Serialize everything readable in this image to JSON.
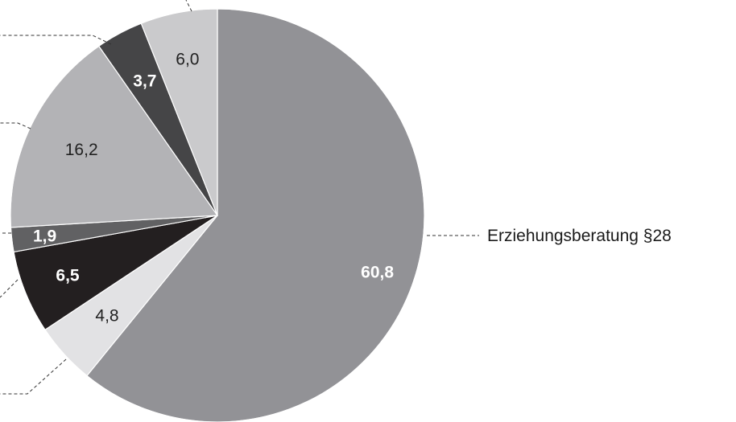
{
  "chart_data": {
    "type": "pie",
    "start_angle_deg": 0,
    "direction": "clockwise",
    "slices": [
      {
        "value": 60.8,
        "label": "60,8",
        "color": "#929296",
        "label_color": "#ffffff",
        "bold": true,
        "category": "Erziehungsberatung §28"
      },
      {
        "value": 4.8,
        "label": "4,8",
        "color": "#e2e2e4",
        "label_color": "#222222",
        "bold": false,
        "category": ""
      },
      {
        "value": 6.5,
        "label": "6,5",
        "color": "#231f20",
        "label_color": "#ffffff",
        "bold": true,
        "category": ""
      },
      {
        "value": 1.9,
        "label": "1,9",
        "color": "#616163",
        "label_color": "#ffffff",
        "bold": true,
        "category": ""
      },
      {
        "value": 16.2,
        "label": "16,2",
        "color": "#b3b3b6",
        "label_color": "#222222",
        "bold": false,
        "category": ""
      },
      {
        "value": 3.7,
        "label": "3,7",
        "color": "#454547",
        "label_color": "#ffffff",
        "bold": true,
        "category": ""
      },
      {
        "value": 6.0,
        "label": "6,0",
        "color": "#cacacc",
        "label_color": "#222222",
        "bold": false,
        "category": ""
      }
    ]
  }
}
